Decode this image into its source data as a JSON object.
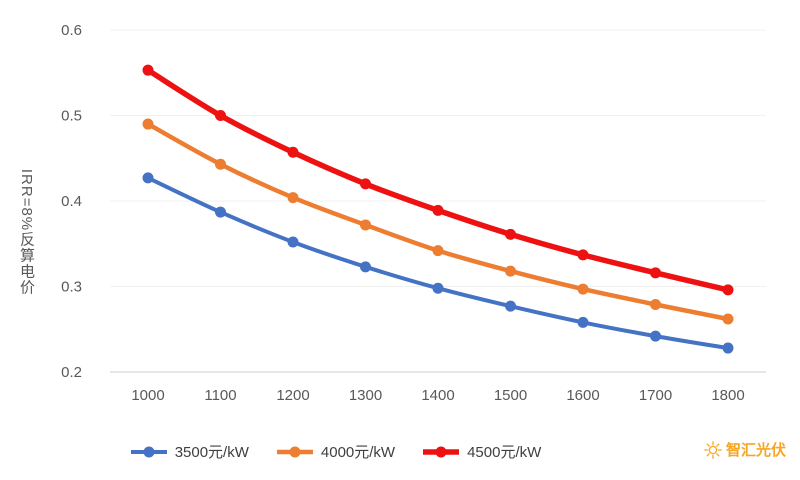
{
  "chart_data": {
    "type": "line",
    "x": [
      1000,
      1100,
      1200,
      1300,
      1400,
      1500,
      1600,
      1700,
      1800
    ],
    "series": [
      {
        "name": "3500元/kW",
        "color": "#4472c4",
        "line_width": 4,
        "values": [
          0.427,
          0.387,
          0.352,
          0.323,
          0.298,
          0.277,
          0.258,
          0.242,
          0.228
        ]
      },
      {
        "name": "4000元/kW",
        "color": "#ed7d31",
        "line_width": 4.5,
        "values": [
          0.49,
          0.443,
          0.404,
          0.372,
          0.342,
          0.318,
          0.297,
          0.279,
          0.262
        ]
      },
      {
        "name": "4500元/kW",
        "color": "#ee1111",
        "line_width": 5.5,
        "values": [
          0.553,
          0.5,
          0.457,
          0.42,
          0.389,
          0.361,
          0.337,
          0.316,
          0.296
        ]
      }
    ],
    "title": "",
    "xlabel": "",
    "ylabel": "IRR=8%反算电价",
    "ylim": [
      0.2,
      0.6
    ],
    "yticks": [
      0.2,
      0.3,
      0.4,
      0.5,
      0.6
    ],
    "grid": "faint-horizontal",
    "legend_position": "bottom"
  },
  "watermark": {
    "text": "智汇光伏",
    "color": "#f6a622",
    "icon": "sun-icon"
  }
}
